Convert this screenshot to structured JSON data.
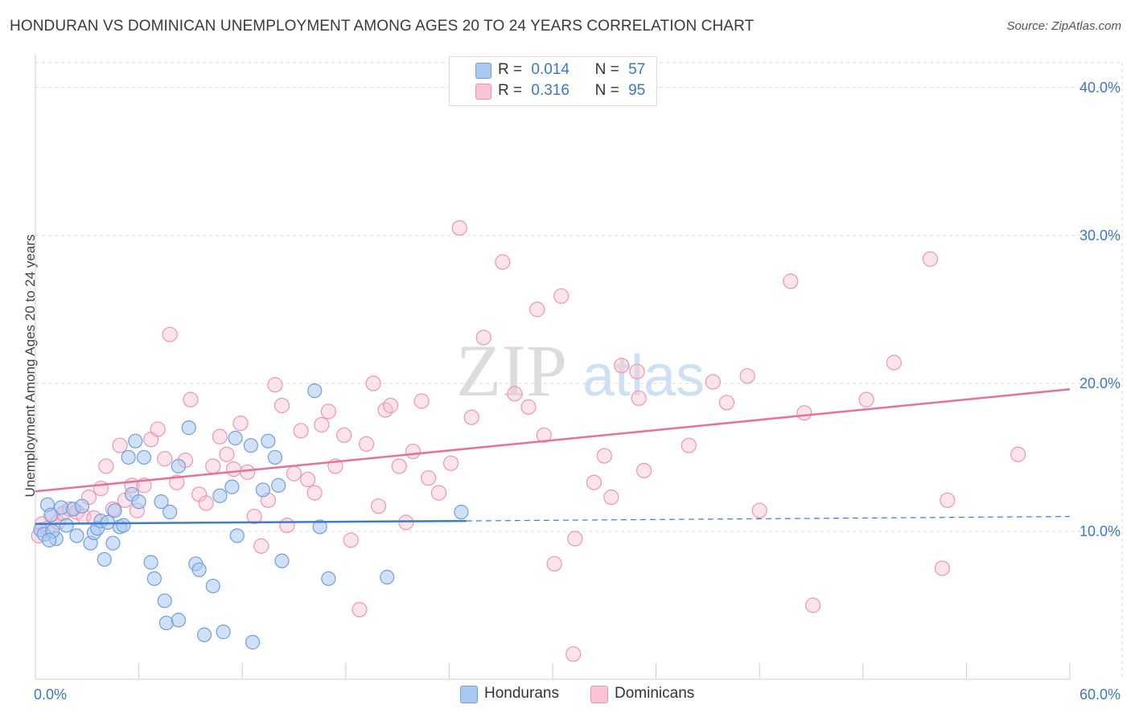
{
  "header": {
    "title": "HONDURAN VS DOMINICAN UNEMPLOYMENT AMONG AGES 20 TO 24 YEARS CORRELATION CHART",
    "source": "Source: ZipAtlas.com"
  },
  "watermark": {
    "zip": "ZIP",
    "atlas": "atlas"
  },
  "legend": {
    "rows": [
      {
        "r_label": "R =",
        "r_value": "0.014",
        "n_label": "N =",
        "n_value": "57"
      },
      {
        "r_label": "R =",
        "r_value": "0.316",
        "n_label": "N =",
        "n_value": "95"
      }
    ]
  },
  "bottom_legend": {
    "hondurans": "Hondurans",
    "dominicans": "Dominicans"
  },
  "colors": {
    "honduran_fill": "#a9c8f0",
    "honduran_stroke": "#6f9fdc",
    "honduran_line": "#3a7bd5",
    "dominican_fill": "#f8c3d3",
    "dominican_stroke": "#ee94b2",
    "dominican_line": "#e8709a",
    "tick": "#3b78c4",
    "grid": "#d9d9d9"
  },
  "chart_data": {
    "type": "scatter",
    "title": "HONDURAN VS DOMINICAN UNEMPLOYMENT AMONG AGES 20 TO 24 YEARS CORRELATION CHART",
    "xlabel": "",
    "ylabel": "Unemployment Among Ages 20 to 24 years",
    "xlim": [
      0,
      60
    ],
    "ylim": [
      0,
      42
    ],
    "x_tick_labels": [
      "0.0%",
      "60.0%"
    ],
    "y_ticks": [
      10,
      20,
      30,
      40
    ],
    "y_tick_labels": [
      "10.0%",
      "20.0%",
      "30.0%",
      "40.0%"
    ],
    "grid": true,
    "legend_position": "top-center",
    "series": [
      {
        "name": "Hondurans",
        "R": 0.014,
        "N": 57,
        "trend": {
          "x": [
            0,
            25
          ],
          "y": [
            10.5,
            10.7
          ],
          "dashed_to_x": 60,
          "dashed_end_y": 11.0
        },
        "points": [
          [
            0.3,
            10.1
          ],
          [
            0.5,
            9.8
          ],
          [
            0.7,
            11.8
          ],
          [
            0.9,
            11.1
          ],
          [
            1.2,
            9.5
          ],
          [
            1.5,
            11.6
          ],
          [
            1.8,
            10.4
          ],
          [
            2.2,
            11.5
          ],
          [
            2.4,
            9.7
          ],
          [
            2.7,
            11.7
          ],
          [
            3.2,
            9.2
          ],
          [
            3.4,
            9.9
          ],
          [
            3.6,
            10.2
          ],
          [
            3.8,
            10.7
          ],
          [
            4.0,
            8.1
          ],
          [
            4.2,
            10.6
          ],
          [
            4.5,
            9.2
          ],
          [
            4.6,
            11.4
          ],
          [
            4.9,
            10.3
          ],
          [
            5.1,
            10.4
          ],
          [
            5.4,
            15.0
          ],
          [
            5.6,
            12.5
          ],
          [
            5.8,
            16.1
          ],
          [
            6.0,
            12.0
          ],
          [
            6.3,
            15.0
          ],
          [
            6.7,
            7.9
          ],
          [
            6.9,
            6.8
          ],
          [
            7.3,
            12.0
          ],
          [
            7.5,
            5.3
          ],
          [
            7.8,
            11.3
          ],
          [
            8.3,
            14.4
          ],
          [
            8.9,
            17.0
          ],
          [
            9.3,
            7.8
          ],
          [
            9.5,
            7.4
          ],
          [
            9.8,
            3.0
          ],
          [
            10.3,
            6.3
          ],
          [
            10.7,
            12.4
          ],
          [
            10.9,
            3.2
          ],
          [
            11.4,
            13.0
          ],
          [
            11.6,
            16.3
          ],
          [
            11.7,
            9.7
          ],
          [
            12.5,
            15.8
          ],
          [
            13.2,
            12.8
          ],
          [
            13.5,
            16.1
          ],
          [
            13.9,
            15.0
          ],
          [
            14.1,
            13.1
          ],
          [
            14.3,
            8.0
          ],
          [
            16.2,
            19.5
          ],
          [
            16.5,
            10.3
          ],
          [
            17.0,
            6.8
          ],
          [
            7.6,
            3.8
          ],
          [
            8.3,
            4.0
          ],
          [
            12.6,
            2.5
          ],
          [
            20.4,
            6.9
          ],
          [
            24.7,
            11.3
          ],
          [
            1.0,
            10.0
          ],
          [
            0.8,
            9.4
          ]
        ]
      },
      {
        "name": "Dominicans",
        "R": 0.316,
        "N": 95,
        "trend": {
          "x": [
            0,
            60
          ],
          "y": [
            12.7,
            19.6
          ]
        },
        "points": [
          [
            0.2,
            9.7
          ],
          [
            0.4,
            10.5
          ],
          [
            0.7,
            10.2
          ],
          [
            1.0,
            11.0
          ],
          [
            1.3,
            10.6
          ],
          [
            1.6,
            11.2
          ],
          [
            2.0,
            11.5
          ],
          [
            2.4,
            11.3
          ],
          [
            2.8,
            11.0
          ],
          [
            3.1,
            12.3
          ],
          [
            3.4,
            10.9
          ],
          [
            3.8,
            12.9
          ],
          [
            4.1,
            14.4
          ],
          [
            4.5,
            11.5
          ],
          [
            4.9,
            15.8
          ],
          [
            5.2,
            12.1
          ],
          [
            5.6,
            13.1
          ],
          [
            5.9,
            11.4
          ],
          [
            6.3,
            13.1
          ],
          [
            6.7,
            16.2
          ],
          [
            7.1,
            16.9
          ],
          [
            7.5,
            14.9
          ],
          [
            7.8,
            23.3
          ],
          [
            8.2,
            13.3
          ],
          [
            8.7,
            14.8
          ],
          [
            9.0,
            18.9
          ],
          [
            9.5,
            12.5
          ],
          [
            9.9,
            11.9
          ],
          [
            10.3,
            14.4
          ],
          [
            10.7,
            16.4
          ],
          [
            11.1,
            15.2
          ],
          [
            11.5,
            14.2
          ],
          [
            11.9,
            17.3
          ],
          [
            12.3,
            14.0
          ],
          [
            12.7,
            11.0
          ],
          [
            13.1,
            9.0
          ],
          [
            13.5,
            12.1
          ],
          [
            13.9,
            19.9
          ],
          [
            14.3,
            18.5
          ],
          [
            14.6,
            10.4
          ],
          [
            15.0,
            13.9
          ],
          [
            15.4,
            16.8
          ],
          [
            15.8,
            13.5
          ],
          [
            16.2,
            12.6
          ],
          [
            16.6,
            17.2
          ],
          [
            17.0,
            18.1
          ],
          [
            17.4,
            14.4
          ],
          [
            17.9,
            16.5
          ],
          [
            18.3,
            9.4
          ],
          [
            18.8,
            4.7
          ],
          [
            19.2,
            15.9
          ],
          [
            19.6,
            20.0
          ],
          [
            19.9,
            11.7
          ],
          [
            20.3,
            18.2
          ],
          [
            20.6,
            18.5
          ],
          [
            21.1,
            14.4
          ],
          [
            21.5,
            10.6
          ],
          [
            21.9,
            15.4
          ],
          [
            22.4,
            18.8
          ],
          [
            22.8,
            13.6
          ],
          [
            23.4,
            12.6
          ],
          [
            24.1,
            14.6
          ],
          [
            24.6,
            30.5
          ],
          [
            25.3,
            17.7
          ],
          [
            26.0,
            23.1
          ],
          [
            27.1,
            28.2
          ],
          [
            27.8,
            19.3
          ],
          [
            29.1,
            25.0
          ],
          [
            29.5,
            16.5
          ],
          [
            30.1,
            7.8
          ],
          [
            30.5,
            25.9
          ],
          [
            31.3,
            9.5
          ],
          [
            32.4,
            13.3
          ],
          [
            33.0,
            15.1
          ],
          [
            33.4,
            12.3
          ],
          [
            34.0,
            21.2
          ],
          [
            35.0,
            19.0
          ],
          [
            35.3,
            14.1
          ],
          [
            37.9,
            15.8
          ],
          [
            39.3,
            20.1
          ],
          [
            40.1,
            18.7
          ],
          [
            41.3,
            20.5
          ],
          [
            42.0,
            11.4
          ],
          [
            43.8,
            26.9
          ],
          [
            44.6,
            18.0
          ],
          [
            45.1,
            5.0
          ],
          [
            48.2,
            18.9
          ],
          [
            49.8,
            21.4
          ],
          [
            51.9,
            28.4
          ],
          [
            52.6,
            7.5
          ],
          [
            52.9,
            12.1
          ],
          [
            57.0,
            15.2
          ],
          [
            31.2,
            1.7
          ],
          [
            28.6,
            18.4
          ],
          [
            34.9,
            20.8
          ]
        ]
      }
    ]
  }
}
